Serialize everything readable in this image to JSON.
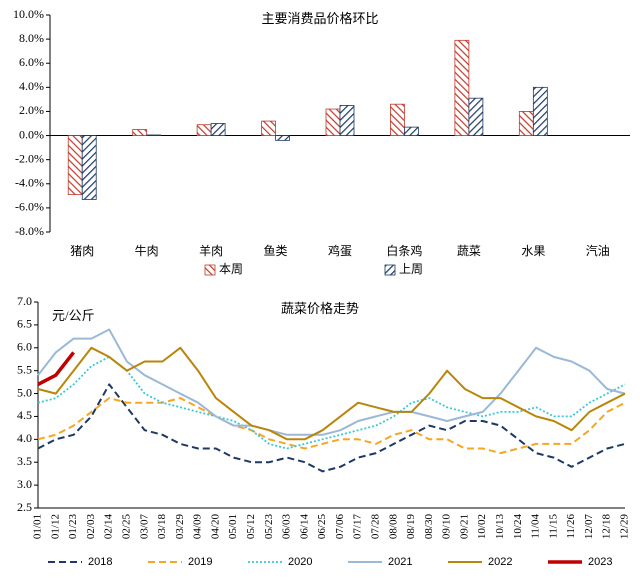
{
  "chart_data": [
    {
      "type": "bar",
      "title": "主要消费品价格环比",
      "categories": [
        "猪肉",
        "牛肉",
        "羊肉",
        "鱼类",
        "鸡蛋",
        "白条鸡",
        "蔬菜",
        "水果",
        "汽油"
      ],
      "series": [
        {
          "name": "本周",
          "color": "#c0392b",
          "values": [
            -4.9,
            0.5,
            0.9,
            1.2,
            2.2,
            2.6,
            7.9,
            2.0,
            null
          ]
        },
        {
          "name": "上周",
          "color": "#1f3864",
          "values": [
            -5.3,
            0.05,
            1.0,
            -0.4,
            2.5,
            0.7,
            3.1,
            4.0,
            null
          ]
        }
      ],
      "ylim": [
        -8,
        10
      ],
      "yticks": [
        {
          "value": -8,
          "label": "-8.0%"
        },
        {
          "value": -6,
          "label": "-6.0%"
        },
        {
          "value": -4,
          "label": "-4.0%"
        },
        {
          "value": -2,
          "label": "-2.0%"
        },
        {
          "value": 0,
          "label": "0.0%"
        },
        {
          "value": 2,
          "label": "2.0%"
        },
        {
          "value": 4,
          "label": "4.0%"
        },
        {
          "value": 6,
          "label": "6.0%"
        },
        {
          "value": 8,
          "label": "8.0%"
        },
        {
          "value": 10,
          "label": "10.0%"
        }
      ],
      "legend": "bottom"
    },
    {
      "type": "line",
      "title": "蔬菜价格走势",
      "y_label": "元/公斤",
      "categories": [
        "01/01",
        "01/12",
        "01/23",
        "02/03",
        "02/14",
        "02/25",
        "03/07",
        "03/18",
        "03/29",
        "04/09",
        "04/20",
        "05/01",
        "05/12",
        "05/23",
        "06/03",
        "06/14",
        "06/25",
        "07/06",
        "07/17",
        "07/28",
        "08/08",
        "08/19",
        "08/30",
        "09/10",
        "09/21",
        "10/02",
        "10/13",
        "10/24",
        "11/04",
        "11/15",
        "11/26",
        "12/07",
        "12/18",
        "12/29"
      ],
      "series": [
        {
          "name": "2018",
          "color": "#1f3864",
          "style": "dashed",
          "values": [
            3.8,
            4.0,
            4.1,
            4.5,
            5.2,
            4.7,
            4.2,
            4.1,
            3.9,
            3.8,
            3.8,
            3.6,
            3.5,
            3.5,
            3.6,
            3.5,
            3.3,
            3.4,
            3.6,
            3.7,
            3.9,
            4.1,
            4.3,
            4.2,
            4.4,
            4.4,
            4.3,
            4.0,
            3.7,
            3.6,
            3.4,
            3.6,
            3.8,
            3.9
          ]
        },
        {
          "name": "2019",
          "color": "#f5a623",
          "style": "dashed",
          "values": [
            4.0,
            4.1,
            4.3,
            4.6,
            4.9,
            4.8,
            4.8,
            4.8,
            4.9,
            4.7,
            4.5,
            4.3,
            4.2,
            4.0,
            3.9,
            3.8,
            3.9,
            4.0,
            4.0,
            3.9,
            4.1,
            4.2,
            4.0,
            4.0,
            3.8,
            3.8,
            3.7,
            3.8,
            3.9,
            3.9,
            3.9,
            4.2,
            4.6,
            4.8
          ]
        },
        {
          "name": "2020",
          "color": "#3cc6d8",
          "style": "dotted",
          "values": [
            4.8,
            4.9,
            5.2,
            5.6,
            5.8,
            5.5,
            5.0,
            4.8,
            4.7,
            4.6,
            4.5,
            4.4,
            4.2,
            3.9,
            3.8,
            3.9,
            4.0,
            4.1,
            4.2,
            4.3,
            4.5,
            4.8,
            4.9,
            4.7,
            4.6,
            4.5,
            4.6,
            4.6,
            4.7,
            4.5,
            4.5,
            4.8,
            5.0,
            5.2
          ]
        },
        {
          "name": "2021",
          "color": "#9bb8d6",
          "style": "solid",
          "values": [
            5.4,
            5.9,
            6.2,
            6.2,
            6.4,
            5.7,
            5.4,
            5.2,
            5.0,
            4.8,
            4.5,
            4.3,
            4.3,
            4.2,
            4.1,
            4.1,
            4.1,
            4.2,
            4.4,
            4.5,
            4.6,
            4.6,
            4.5,
            4.4,
            4.5,
            4.6,
            5.0,
            5.5,
            6.0,
            5.8,
            5.7,
            5.5,
            5.1,
            5.0
          ]
        },
        {
          "name": "2022",
          "color": "#b8860b",
          "style": "solid",
          "values": [
            5.1,
            5.0,
            5.5,
            6.0,
            5.8,
            5.5,
            5.7,
            5.7,
            6.0,
            5.5,
            4.9,
            4.6,
            4.3,
            4.2,
            4.0,
            4.0,
            4.2,
            4.5,
            4.8,
            4.7,
            4.6,
            4.6,
            5.0,
            5.5,
            5.1,
            4.9,
            4.9,
            4.7,
            4.5,
            4.4,
            4.2,
            4.6,
            4.8,
            5.0
          ]
        },
        {
          "name": "2023",
          "color": "#c00000",
          "style": "thick",
          "values": [
            5.2,
            5.4,
            5.9,
            null,
            null,
            null,
            null,
            null,
            null,
            null,
            null,
            null,
            null,
            null,
            null,
            null,
            null,
            null,
            null,
            null,
            null,
            null,
            null,
            null,
            null,
            null,
            null,
            null,
            null,
            null,
            null,
            null,
            null,
            null
          ]
        }
      ],
      "ylim": [
        2.5,
        7.0
      ],
      "yticks": [
        {
          "value": 2.5,
          "label": "2.5"
        },
        {
          "value": 3,
          "label": "3.0"
        },
        {
          "value": 3.5,
          "label": "3.5"
        },
        {
          "value": 4,
          "label": "4.0"
        },
        {
          "value": 4.5,
          "label": "4.5"
        },
        {
          "value": 5,
          "label": "5.0"
        },
        {
          "value": 5.5,
          "label": "5.5"
        },
        {
          "value": 6,
          "label": "6.0"
        },
        {
          "value": 6.5,
          "label": "6.5"
        },
        {
          "value": 7,
          "label": "7.0"
        }
      ],
      "legend": "bottom"
    }
  ]
}
